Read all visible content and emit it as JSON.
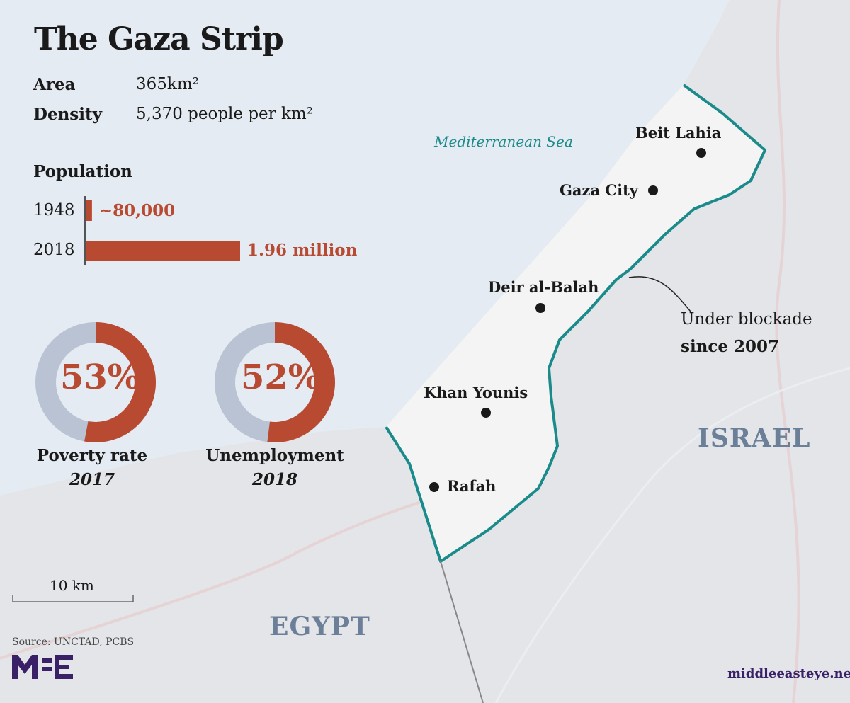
{
  "title": "The Gaza Strip",
  "facts": [
    {
      "label": "Area",
      "value": "365km²"
    },
    {
      "label": "Density",
      "value": "5,370 people per km²"
    }
  ],
  "population": {
    "heading": "Population",
    "rows": [
      {
        "year": "1948",
        "value": 80000,
        "label": "~80,000"
      },
      {
        "year": "2018",
        "value": 1960000,
        "label": "1.96 million"
      }
    ]
  },
  "donuts": [
    {
      "percent": 53,
      "text": "53%",
      "label": "Poverty rate",
      "year": "2017"
    },
    {
      "percent": 52,
      "text": "52%",
      "label": "Unemployment",
      "year": "2018"
    }
  ],
  "map": {
    "sea_label": "Mediterranean Sea",
    "cities": [
      "Beit Lahia",
      "Gaza City",
      "Deir al-Balah",
      "Khan Younis",
      "Rafah"
    ],
    "annotation": {
      "line1": "Under blockade",
      "line2": "since 2007"
    },
    "countries": [
      "ISRAEL",
      "EGYPT"
    ],
    "scale": "10 km"
  },
  "source": "Source: UNCTAD, PCBS",
  "logo": "MEE",
  "website": "middleeasteye.net",
  "colors": {
    "sea": "#e4ebf2",
    "land": "#e3e5e8",
    "strip": "#f4f4f4",
    "border": "#1a8a8a",
    "accent": "#b94a32",
    "donut_rest": "#b9c3d4",
    "brand": "#3a2066"
  }
}
